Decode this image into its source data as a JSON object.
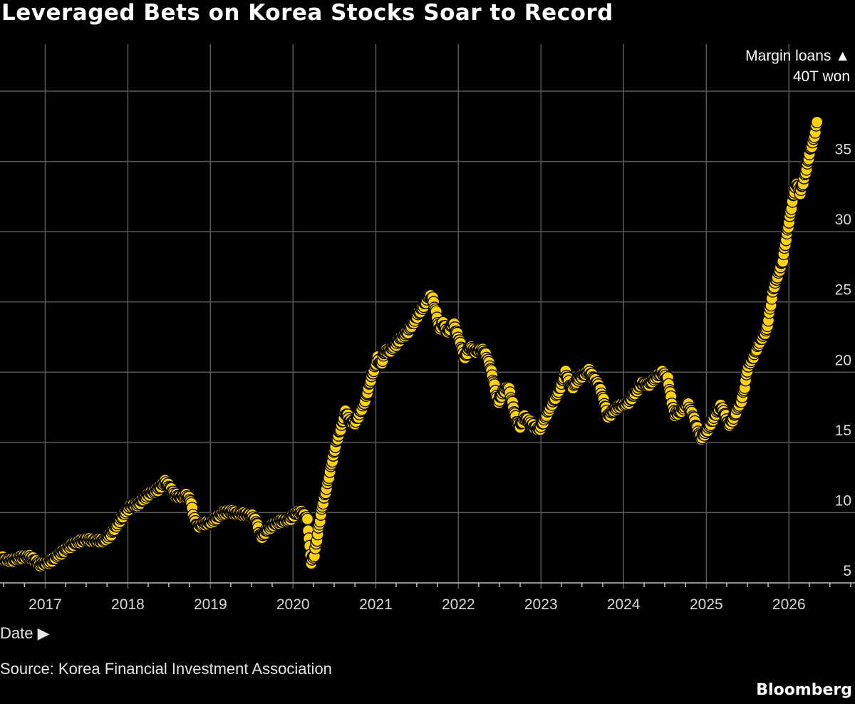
{
  "chart_data": {
    "type": "scatter",
    "title": "Leveraged Bets on Korea Stocks Soar to Record",
    "ylabel": "Margin loans ▲",
    "ylabel_unit": "40T won",
    "xlabel": "Date ▶",
    "source": "Source: Korea Financial Investment Association",
    "brand": "Bloomberg",
    "x_ticks": [
      "2017",
      "2018",
      "2019",
      "2020",
      "2021",
      "2022",
      "2023",
      "2024",
      "2025",
      "2026"
    ],
    "y_ticks": [
      5,
      10,
      15,
      20,
      25,
      30,
      35,
      40
    ],
    "ylim": [
      5,
      40
    ],
    "xlim": [
      "2016-06-15",
      "2026-10-20"
    ],
    "grid": true,
    "point_color": "#fdd10d",
    "series": [
      {
        "points": [
          [
            "2016-06-22",
            6.8
          ],
          [
            "2016-07-10",
            6.6
          ],
          [
            "2016-08-05",
            6.6
          ],
          [
            "2016-09-10",
            6.8
          ],
          [
            "2016-10-20",
            6.9
          ],
          [
            "2016-11-15",
            6.6
          ],
          [
            "2016-12-10",
            6.3
          ],
          [
            "2017-01-20",
            6.5
          ],
          [
            "2017-03-01",
            7.0
          ],
          [
            "2017-04-10",
            7.5
          ],
          [
            "2017-05-20",
            7.9
          ],
          [
            "2017-07-01",
            8.1
          ],
          [
            "2017-08-10",
            8.0
          ],
          [
            "2017-09-20",
            8.0
          ],
          [
            "2017-10-20",
            8.5
          ],
          [
            "2017-11-20",
            9.3
          ],
          [
            "2017-12-20",
            10.0
          ],
          [
            "2018-01-15",
            10.5
          ],
          [
            "2018-02-15",
            10.6
          ],
          [
            "2018-03-15",
            11.0
          ],
          [
            "2018-04-10",
            11.4
          ],
          [
            "2018-05-10",
            11.6
          ],
          [
            "2018-06-15",
            12.2
          ],
          [
            "2018-07-05",
            11.8
          ],
          [
            "2018-07-25",
            11.3
          ],
          [
            "2018-08-20",
            11.1
          ],
          [
            "2018-09-15",
            11.2
          ],
          [
            "2018-10-05",
            10.9
          ],
          [
            "2018-10-20",
            9.6
          ],
          [
            "2018-11-05",
            9.0
          ],
          [
            "2018-12-01",
            9.2
          ],
          [
            "2019-01-01",
            9.3
          ],
          [
            "2019-02-01",
            9.7
          ],
          [
            "2019-03-01",
            10.0
          ],
          [
            "2019-04-01",
            10.1
          ],
          [
            "2019-05-01",
            9.9
          ],
          [
            "2019-06-01",
            9.9
          ],
          [
            "2019-07-01",
            9.8
          ],
          [
            "2019-07-25",
            9.3
          ],
          [
            "2019-08-10",
            8.2
          ],
          [
            "2019-09-10",
            8.8
          ],
          [
            "2019-10-10",
            9.2
          ],
          [
            "2019-11-10",
            9.4
          ],
          [
            "2019-12-15",
            9.5
          ],
          [
            "2020-01-15",
            10.0
          ],
          [
            "2020-02-10",
            10.0
          ],
          [
            "2020-03-05",
            9.5
          ],
          [
            "2020-03-15",
            7.5
          ],
          [
            "2020-03-22",
            6.5
          ],
          [
            "2020-04-05",
            7.0
          ],
          [
            "2020-04-20",
            8.5
          ],
          [
            "2020-05-10",
            10.5
          ],
          [
            "2020-06-01",
            12.0
          ],
          [
            "2020-06-20",
            13.5
          ],
          [
            "2020-07-10",
            15.0
          ],
          [
            "2020-07-30",
            16.0
          ],
          [
            "2020-08-20",
            17.2
          ],
          [
            "2020-09-10",
            16.5
          ],
          [
            "2020-10-01",
            16.4
          ],
          [
            "2020-10-20",
            17.0
          ],
          [
            "2020-11-15",
            18.0
          ],
          [
            "2020-12-10",
            19.5
          ],
          [
            "2021-01-10",
            21.0
          ],
          [
            "2021-01-25",
            20.5
          ],
          [
            "2021-02-10",
            21.5
          ],
          [
            "2021-03-05",
            21.5
          ],
          [
            "2021-04-01",
            22.0
          ],
          [
            "2021-04-25",
            22.5
          ],
          [
            "2021-05-20",
            22.8
          ],
          [
            "2021-06-15",
            23.5
          ],
          [
            "2021-07-10",
            24.2
          ],
          [
            "2021-08-01",
            24.7
          ],
          [
            "2021-08-25",
            25.5
          ],
          [
            "2021-09-10",
            25.2
          ],
          [
            "2021-09-25",
            24.2
          ],
          [
            "2021-10-10",
            23.0
          ],
          [
            "2021-10-25",
            23.5
          ],
          [
            "2021-11-15",
            22.8
          ],
          [
            "2021-12-10",
            23.5
          ],
          [
            "2022-01-10",
            22.0
          ],
          [
            "2022-01-30",
            21.0
          ],
          [
            "2022-02-20",
            21.8
          ],
          [
            "2022-03-15",
            21.5
          ],
          [
            "2022-04-05",
            21.6
          ],
          [
            "2022-04-25",
            21.5
          ],
          [
            "2022-05-20",
            20.5
          ],
          [
            "2022-06-10",
            19.0
          ],
          [
            "2022-06-25",
            17.8
          ],
          [
            "2022-07-15",
            18.5
          ],
          [
            "2022-08-10",
            19.0
          ],
          [
            "2022-08-25",
            18.0
          ],
          [
            "2022-09-15",
            16.5
          ],
          [
            "2022-10-01",
            16.1
          ],
          [
            "2022-10-20",
            16.8
          ],
          [
            "2022-11-10",
            16.5
          ],
          [
            "2022-12-01",
            16.1
          ],
          [
            "2022-12-25",
            15.9
          ],
          [
            "2023-01-15",
            16.6
          ],
          [
            "2023-02-10",
            17.5
          ],
          [
            "2023-03-05",
            18.2
          ],
          [
            "2023-03-30",
            19.0
          ],
          [
            "2023-04-20",
            20.0
          ],
          [
            "2023-05-15",
            18.8
          ],
          [
            "2023-06-10",
            19.4
          ],
          [
            "2023-07-05",
            19.8
          ],
          [
            "2023-08-01",
            20.1
          ],
          [
            "2023-08-25",
            19.5
          ],
          [
            "2023-09-15",
            19.0
          ],
          [
            "2023-10-05",
            18.0
          ],
          [
            "2023-10-25",
            16.8
          ],
          [
            "2023-11-20",
            17.3
          ],
          [
            "2023-12-15",
            17.6
          ],
          [
            "2024-01-20",
            17.8
          ],
          [
            "2024-02-20",
            18.5
          ],
          [
            "2024-03-20",
            19.2
          ],
          [
            "2024-04-20",
            19.1
          ],
          [
            "2024-05-20",
            19.6
          ],
          [
            "2024-06-20",
            20.0
          ],
          [
            "2024-07-15",
            19.5
          ],
          [
            "2024-08-05",
            17.5
          ],
          [
            "2024-08-15",
            17.0
          ],
          [
            "2024-09-10",
            17.2
          ],
          [
            "2024-10-10",
            17.8
          ],
          [
            "2024-11-05",
            16.8
          ],
          [
            "2024-11-25",
            15.8
          ],
          [
            "2024-12-10",
            15.3
          ],
          [
            "2025-01-10",
            16.0
          ],
          [
            "2025-02-10",
            17.0
          ],
          [
            "2025-03-05",
            17.6
          ],
          [
            "2025-03-25",
            17.0
          ],
          [
            "2025-04-10",
            16.2
          ],
          [
            "2025-05-01",
            16.7
          ],
          [
            "2025-05-20",
            17.5
          ],
          [
            "2025-06-05",
            18.0
          ],
          [
            "2025-06-20",
            19.0
          ],
          [
            "2025-07-05",
            20.5
          ],
          [
            "2025-07-25",
            21.0
          ],
          [
            "2025-08-15",
            21.8
          ],
          [
            "2025-09-05",
            22.5
          ],
          [
            "2025-09-25",
            23.0
          ],
          [
            "2025-10-10",
            24.5
          ],
          [
            "2025-10-25",
            26.0
          ],
          [
            "2025-11-15",
            27.0
          ],
          [
            "2025-12-05",
            28.0
          ],
          [
            "2025-12-20",
            29.5
          ],
          [
            "2026-01-05",
            31.0
          ],
          [
            "2026-01-20",
            32.5
          ],
          [
            "2026-02-05",
            33.5
          ],
          [
            "2026-02-20",
            32.8
          ],
          [
            "2026-03-05",
            33.5
          ],
          [
            "2026-03-20",
            34.5
          ],
          [
            "2026-04-05",
            35.8
          ],
          [
            "2026-04-20",
            36.5
          ],
          [
            "2026-05-05",
            37.8
          ]
        ]
      }
    ]
  }
}
